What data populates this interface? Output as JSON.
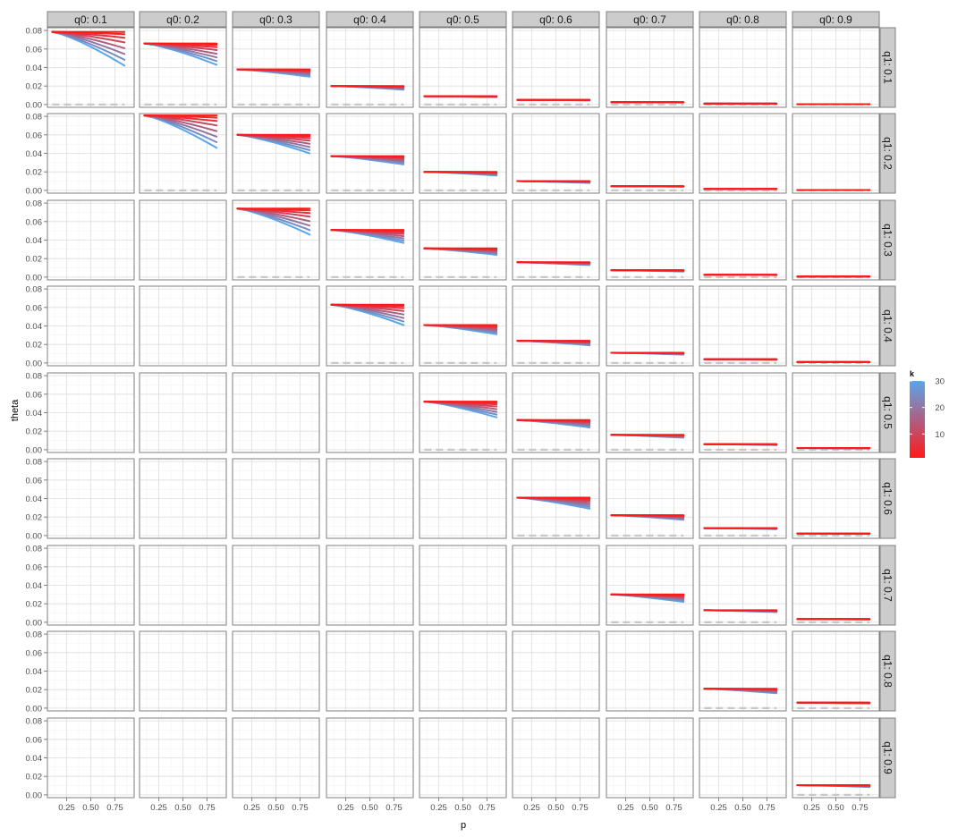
{
  "chart_data": {
    "type": "line",
    "xlabel": "p",
    "ylabel": "theta",
    "col_facet": {
      "var": "q0",
      "labels": [
        "q0: 0.1",
        "q0: 0.2",
        "q0: 0.3",
        "q0: 0.4",
        "q0: 0.5",
        "q0: 0.6",
        "q0: 0.7",
        "q0: 0.8",
        "q0: 0.9"
      ]
    },
    "row_facet": {
      "var": "q1",
      "labels": [
        "q1: 0.1",
        "q1: 0.2",
        "q1: 0.3",
        "q1: 0.4",
        "q1: 0.5",
        "q1: 0.6",
        "q1: 0.7",
        "q1: 0.8",
        "q1: 0.9"
      ]
    },
    "x_ticks": [
      0.25,
      0.5,
      0.75
    ],
    "x_tick_labels": [
      "0.25",
      "0.50",
      "0.75"
    ],
    "y_ticks": [
      0,
      0.02,
      0.04,
      0.06,
      0.08
    ],
    "y_tick_labels": [
      "0.00",
      "0.02",
      "0.04",
      "0.06",
      "0.08"
    ],
    "xlim": [
      0.05,
      0.95
    ],
    "ylim": [
      -0.003,
      0.083
    ],
    "grid": true,
    "legend": {
      "title": "k",
      "type": "colorbar",
      "position": "right",
      "range": [
        1,
        30
      ],
      "breaks": [
        10,
        20,
        30
      ],
      "break_labels": [
        "10",
        "20",
        "30"
      ],
      "low_color": "#ff1a1a",
      "high_color": "#5aa6ea"
    },
    "k_values": [
      1,
      3,
      6,
      10,
      15,
      20,
      25,
      30
    ],
    "x": [
      0.1,
      0.2,
      0.3,
      0.4,
      0.5,
      0.6,
      0.7,
      0.8,
      0.85
    ],
    "reference_line": {
      "y": 0,
      "color": "#c8c8c8",
      "style": "dashed"
    },
    "panels": [
      {
        "row": 1,
        "col": 1,
        "y_k1": 0.0785,
        "y_k30_end": 0.042
      },
      {
        "row": 1,
        "col": 2,
        "y_k1": 0.066,
        "y_k30_end": 0.043
      },
      {
        "row": 1,
        "col": 3,
        "y_k1": 0.038,
        "y_k30_end": 0.03
      },
      {
        "row": 1,
        "col": 4,
        "y_k1": 0.02,
        "y_k30_end": 0.016
      },
      {
        "row": 1,
        "col": 5,
        "y_k1": 0.009,
        "y_k30_end": 0.008
      },
      {
        "row": 1,
        "col": 6,
        "y_k1": 0.005,
        "y_k30_end": 0.0045
      },
      {
        "row": 1,
        "col": 7,
        "y_k1": 0.0025,
        "y_k30_end": 0.0022
      },
      {
        "row": 1,
        "col": 8,
        "y_k1": 0.001,
        "y_k30_end": 0.001
      },
      {
        "row": 1,
        "col": 9,
        "y_k1": 0.0004,
        "y_k30_end": 0.0004
      },
      {
        "row": 2,
        "col": 2,
        "y_k1": 0.081,
        "y_k30_end": 0.046
      },
      {
        "row": 2,
        "col": 3,
        "y_k1": 0.06,
        "y_k30_end": 0.04
      },
      {
        "row": 2,
        "col": 4,
        "y_k1": 0.037,
        "y_k30_end": 0.028
      },
      {
        "row": 2,
        "col": 5,
        "y_k1": 0.02,
        "y_k30_end": 0.016
      },
      {
        "row": 2,
        "col": 6,
        "y_k1": 0.01,
        "y_k30_end": 0.008
      },
      {
        "row": 2,
        "col": 7,
        "y_k1": 0.0045,
        "y_k30_end": 0.004
      },
      {
        "row": 2,
        "col": 8,
        "y_k1": 0.0015,
        "y_k30_end": 0.0015
      },
      {
        "row": 2,
        "col": 9,
        "y_k1": 0.0004,
        "y_k30_end": 0.0004
      },
      {
        "row": 3,
        "col": 3,
        "y_k1": 0.074,
        "y_k30_end": 0.046
      },
      {
        "row": 3,
        "col": 4,
        "y_k1": 0.051,
        "y_k30_end": 0.037
      },
      {
        "row": 3,
        "col": 5,
        "y_k1": 0.031,
        "y_k30_end": 0.024
      },
      {
        "row": 3,
        "col": 6,
        "y_k1": 0.016,
        "y_k30_end": 0.013
      },
      {
        "row": 3,
        "col": 7,
        "y_k1": 0.0075,
        "y_k30_end": 0.006
      },
      {
        "row": 3,
        "col": 8,
        "y_k1": 0.0025,
        "y_k30_end": 0.0022
      },
      {
        "row": 3,
        "col": 9,
        "y_k1": 0.0006,
        "y_k30_end": 0.0006
      },
      {
        "row": 4,
        "col": 4,
        "y_k1": 0.063,
        "y_k30_end": 0.041
      },
      {
        "row": 4,
        "col": 5,
        "y_k1": 0.041,
        "y_k30_end": 0.031
      },
      {
        "row": 4,
        "col": 6,
        "y_k1": 0.024,
        "y_k30_end": 0.019
      },
      {
        "row": 4,
        "col": 7,
        "y_k1": 0.011,
        "y_k30_end": 0.009
      },
      {
        "row": 4,
        "col": 8,
        "y_k1": 0.004,
        "y_k30_end": 0.0035
      },
      {
        "row": 4,
        "col": 9,
        "y_k1": 0.001,
        "y_k30_end": 0.001
      },
      {
        "row": 5,
        "col": 5,
        "y_k1": 0.052,
        "y_k30_end": 0.035
      },
      {
        "row": 5,
        "col": 6,
        "y_k1": 0.032,
        "y_k30_end": 0.024
      },
      {
        "row": 5,
        "col": 7,
        "y_k1": 0.016,
        "y_k30_end": 0.013
      },
      {
        "row": 5,
        "col": 8,
        "y_k1": 0.006,
        "y_k30_end": 0.005
      },
      {
        "row": 5,
        "col": 9,
        "y_k1": 0.0018,
        "y_k30_end": 0.0015
      },
      {
        "row": 6,
        "col": 6,
        "y_k1": 0.041,
        "y_k30_end": 0.029
      },
      {
        "row": 6,
        "col": 7,
        "y_k1": 0.022,
        "y_k30_end": 0.017
      },
      {
        "row": 6,
        "col": 8,
        "y_k1": 0.008,
        "y_k30_end": 0.007
      },
      {
        "row": 6,
        "col": 9,
        "y_k1": 0.0022,
        "y_k30_end": 0.002
      },
      {
        "row": 7,
        "col": 7,
        "y_k1": 0.03,
        "y_k30_end": 0.022
      },
      {
        "row": 7,
        "col": 8,
        "y_k1": 0.013,
        "y_k30_end": 0.011
      },
      {
        "row": 7,
        "col": 9,
        "y_k1": 0.0035,
        "y_k30_end": 0.003
      },
      {
        "row": 8,
        "col": 8,
        "y_k1": 0.021,
        "y_k30_end": 0.016
      },
      {
        "row": 8,
        "col": 9,
        "y_k1": 0.006,
        "y_k30_end": 0.005
      },
      {
        "row": 9,
        "col": 9,
        "y_k1": 0.0105,
        "y_k30_end": 0.0085
      }
    ]
  }
}
